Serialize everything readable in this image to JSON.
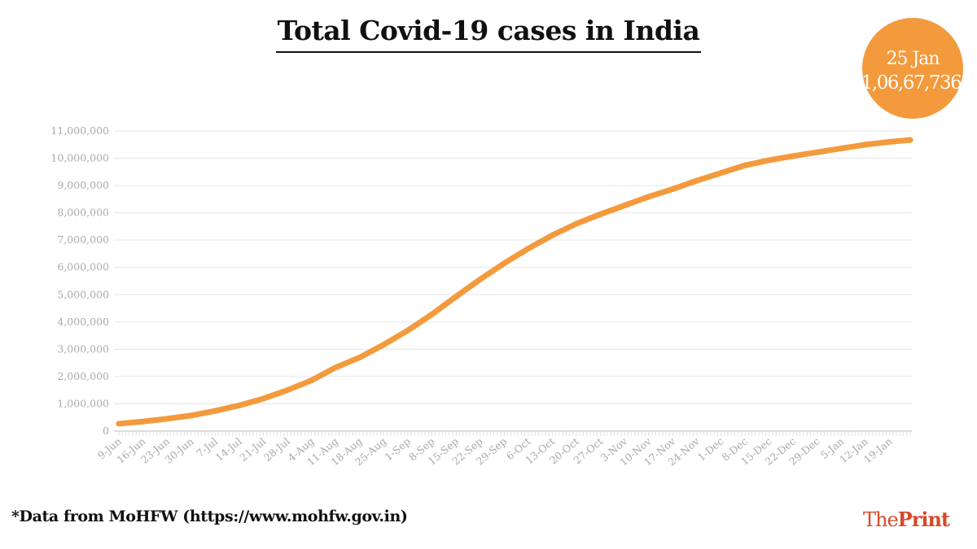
{
  "title": "Total Covid-19 cases in India",
  "annotation": {
    "date": "25 Jan",
    "value": "1,06,67,736"
  },
  "footnote": "*Data from MoHFW (https://www.mohfw.gov.in)",
  "logo": {
    "the": "The",
    "print": "Print"
  },
  "colors": {
    "line": "#f39a3d",
    "grid": "#e6e6e6",
    "tick_text": "#aaaaaa"
  },
  "chart_data": {
    "type": "line",
    "title": "Total Covid-19 cases in India",
    "xlabel": "",
    "ylabel": "",
    "ylim": [
      0,
      11000000
    ],
    "yticks": [
      0,
      1000000,
      2000000,
      3000000,
      4000000,
      5000000,
      6000000,
      7000000,
      8000000,
      9000000,
      10000000,
      11000000
    ],
    "ytick_labels": [
      "0",
      "1,000,000",
      "2,000,000",
      "3,000,000",
      "4,000,000",
      "5,000,000",
      "6,000,000",
      "7,000,000",
      "8,000,000",
      "9,000,000",
      "10,000,000",
      "11,000,000"
    ],
    "xtick_labels": [
      "9-Jun",
      "16-Jun",
      "23-Jun",
      "30-Jun",
      "7-Jul",
      "14-Jul",
      "21-Jul",
      "28-Jul",
      "4-Aug",
      "11-Aug",
      "18-Aug",
      "25-Aug",
      "1-Sep",
      "8-Sep",
      "15-Sep",
      "22-Sep",
      "29-Sep",
      "6-Oct",
      "13-Oct",
      "20-Oct",
      "27-Oct",
      "3-Nov",
      "10-Nov",
      "17-Nov",
      "24-Nov",
      "1-Dec",
      "8-Dec",
      "15-Dec",
      "22-Dec",
      "29-Dec",
      "5-Jan",
      "12-Jan",
      "19-Jan"
    ],
    "grid": true,
    "legend": "none",
    "series": [
      {
        "x": [
          "9-Jun",
          "16-Jun",
          "23-Jun",
          "30-Jun",
          "7-Jul",
          "14-Jul",
          "21-Jul",
          "28-Jul",
          "4-Aug",
          "11-Aug",
          "18-Aug",
          "25-Aug",
          "1-Sep",
          "8-Sep",
          "15-Sep",
          "22-Sep",
          "29-Sep",
          "6-Oct",
          "13-Oct",
          "20-Oct",
          "27-Oct",
          "3-Nov",
          "10-Nov",
          "17-Nov",
          "24-Nov",
          "1-Dec",
          "8-Dec",
          "15-Dec",
          "22-Dec",
          "29-Dec",
          "5-Jan",
          "12-Jan",
          "19-Jan",
          "25-Jan"
        ],
        "values": [
          270000,
          350000,
          450000,
          570000,
          740000,
          940000,
          1190000,
          1500000,
          1860000,
          2330000,
          2700000,
          3170000,
          3690000,
          4280000,
          4930000,
          5560000,
          6150000,
          6690000,
          7180000,
          7600000,
          7950000,
          8270000,
          8590000,
          8870000,
          9180000,
          9460000,
          9740000,
          9930000,
          10080000,
          10220000,
          10360000,
          10500000,
          10600000,
          10667736
        ]
      }
    ]
  }
}
